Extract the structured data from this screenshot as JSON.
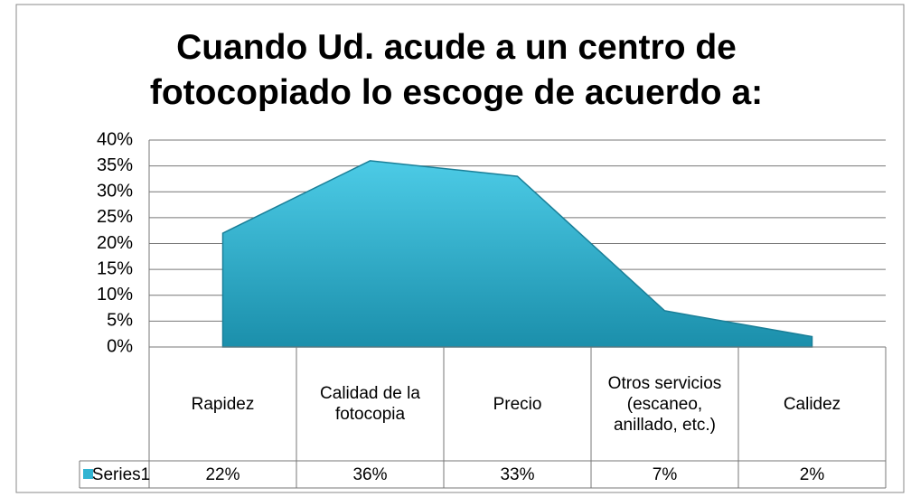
{
  "chart_data": {
    "type": "area",
    "title": "Cuando Ud. acude a un centro de fotocopiado lo escoge de acuerdo a:",
    "categories": [
      "Rapidez",
      "Calidad de la fotocopia",
      "Precio",
      "Otros servicios (escaneo, anillado, etc.)",
      "Calidez"
    ],
    "series": [
      {
        "name": "Series1",
        "color": "#31b4d2",
        "values": [
          22,
          36,
          33,
          7,
          2
        ],
        "value_labels": [
          "22%",
          "36%",
          "33%",
          "7%",
          "2%"
        ]
      }
    ],
    "ylim": [
      0,
      40
    ],
    "yticks": [
      {
        "value": 0,
        "label": "0%"
      },
      {
        "value": 5,
        "label": "5%"
      },
      {
        "value": 10,
        "label": "10%"
      },
      {
        "value": 15,
        "label": "15%"
      },
      {
        "value": 20,
        "label": "20%"
      },
      {
        "value": 25,
        "label": "25%"
      },
      {
        "value": 30,
        "label": "30%"
      },
      {
        "value": 35,
        "label": "35%"
      },
      {
        "value": 40,
        "label": "40%"
      }
    ],
    "grid": true
  }
}
